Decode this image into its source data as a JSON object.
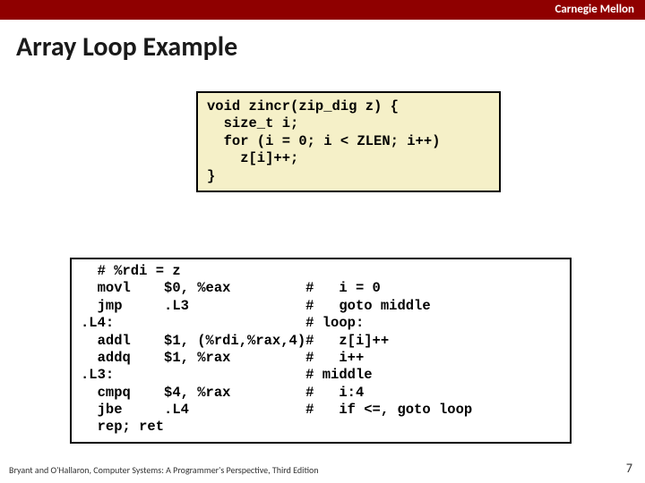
{
  "header": {
    "brand": "Carnegie Mellon"
  },
  "title": "Array Loop Example",
  "source_code": "void zincr(zip_dig z) {\n  size_t i;\n  for (i = 0; i < ZLEN; i++)\n    z[i]++;\n}",
  "assembly_code": "  # %rdi = z\n  movl    $0, %eax         #   i = 0\n  jmp     .L3              #   goto middle\n.L4:                       # loop:\n  addl    $1, (%rdi,%rax,4)#   z[i]++\n  addq    $1, %rax         #   i++\n.L3:                       # middle\n  cmpq    $4, %rax         #   i:4\n  jbe     .L4              #   if <=, goto loop\n  rep; ret",
  "footer": {
    "attribution": "Bryant and O'Hallaron, Computer Systems: A Programmer's Perspective, Third Edition",
    "page": "7"
  },
  "styling": {
    "topbar_bg": "#8f0000",
    "topbar_text": "#ffffff",
    "src_bg": "#f5f0c8",
    "asm_bg": "#ffffff",
    "border_color": "#000000",
    "title_fontsize_pt": 22,
    "code_fontsize_pt": 12,
    "footer_fontsize_pt": 7.5,
    "code_font": "Courier New",
    "body_font": "Calibri"
  }
}
